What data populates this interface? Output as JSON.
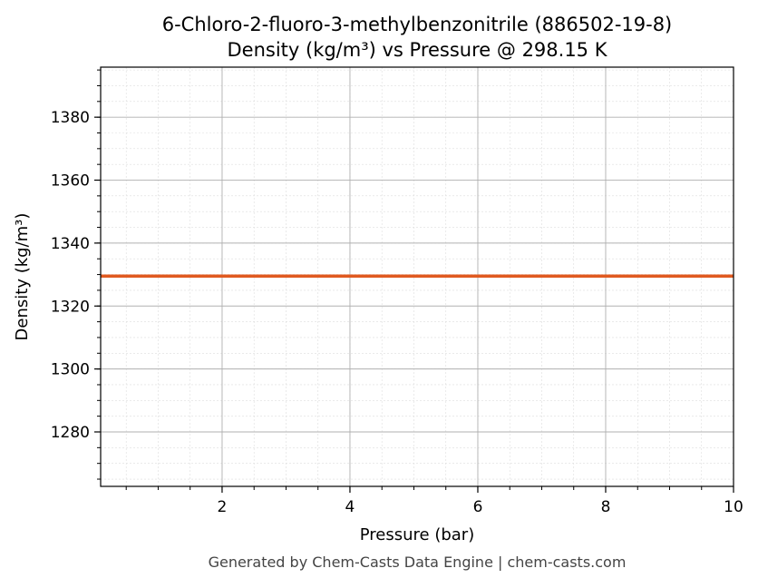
{
  "chart_data": {
    "type": "line",
    "title": "6-Chloro-2-fluoro-3-methylbenzonitrile (886502-19-8)",
    "subtitle": "Density (kg/m³) vs Pressure @ 298.15 K",
    "xlabel": "Pressure (bar)",
    "ylabel": "Density (kg/m³)",
    "xlim": [
      0.1,
      10
    ],
    "ylim": [
      1262.7,
      1395.9
    ],
    "xticks": [
      2,
      4,
      6,
      8,
      10
    ],
    "yticks": [
      1280,
      1300,
      1320,
      1340,
      1360,
      1380
    ],
    "x_minor_step": 0.5,
    "y_minor_step": 5,
    "grid": true,
    "series": [
      {
        "x": [
          0.1,
          10
        ],
        "y": [
          1329.5,
          1329.5
        ],
        "color": "#e05a20"
      }
    ]
  },
  "footer": "Generated by Chem-Casts Data Engine | chem-casts.com"
}
